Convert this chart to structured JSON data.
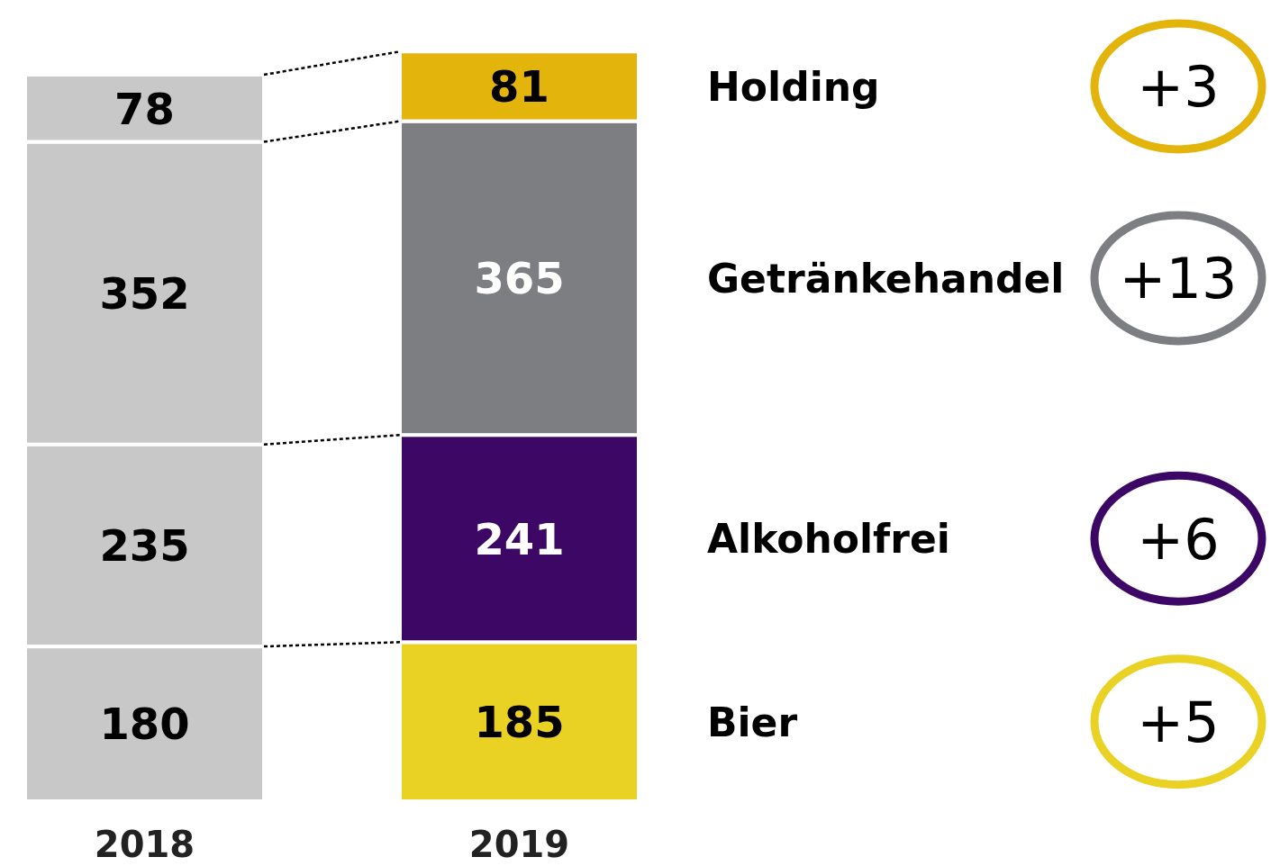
{
  "chart_data": {
    "type": "bar",
    "stacked": true,
    "data_labels": true,
    "categories": [
      "2018",
      "2019"
    ],
    "series": [
      {
        "name": "Bier",
        "colors": [
          "#c8c8c8",
          "#ead224"
        ],
        "values": [
          180,
          185
        ]
      },
      {
        "name": "Alkoholfrei",
        "colors": [
          "#c8c8c8",
          "#3d0865"
        ],
        "values": [
          235,
          241
        ]
      },
      {
        "name": "Getränkehandel",
        "colors": [
          "#c8c8c8",
          "#7d7e82"
        ],
        "values": [
          352,
          365
        ]
      },
      {
        "name": "Holding",
        "colors": [
          "#c8c8c8",
          "#e3b50c"
        ],
        "values": [
          78,
          81
        ]
      }
    ],
    "annotations": [
      "+5",
      "+6",
      "+13",
      "+3"
    ]
  }
}
